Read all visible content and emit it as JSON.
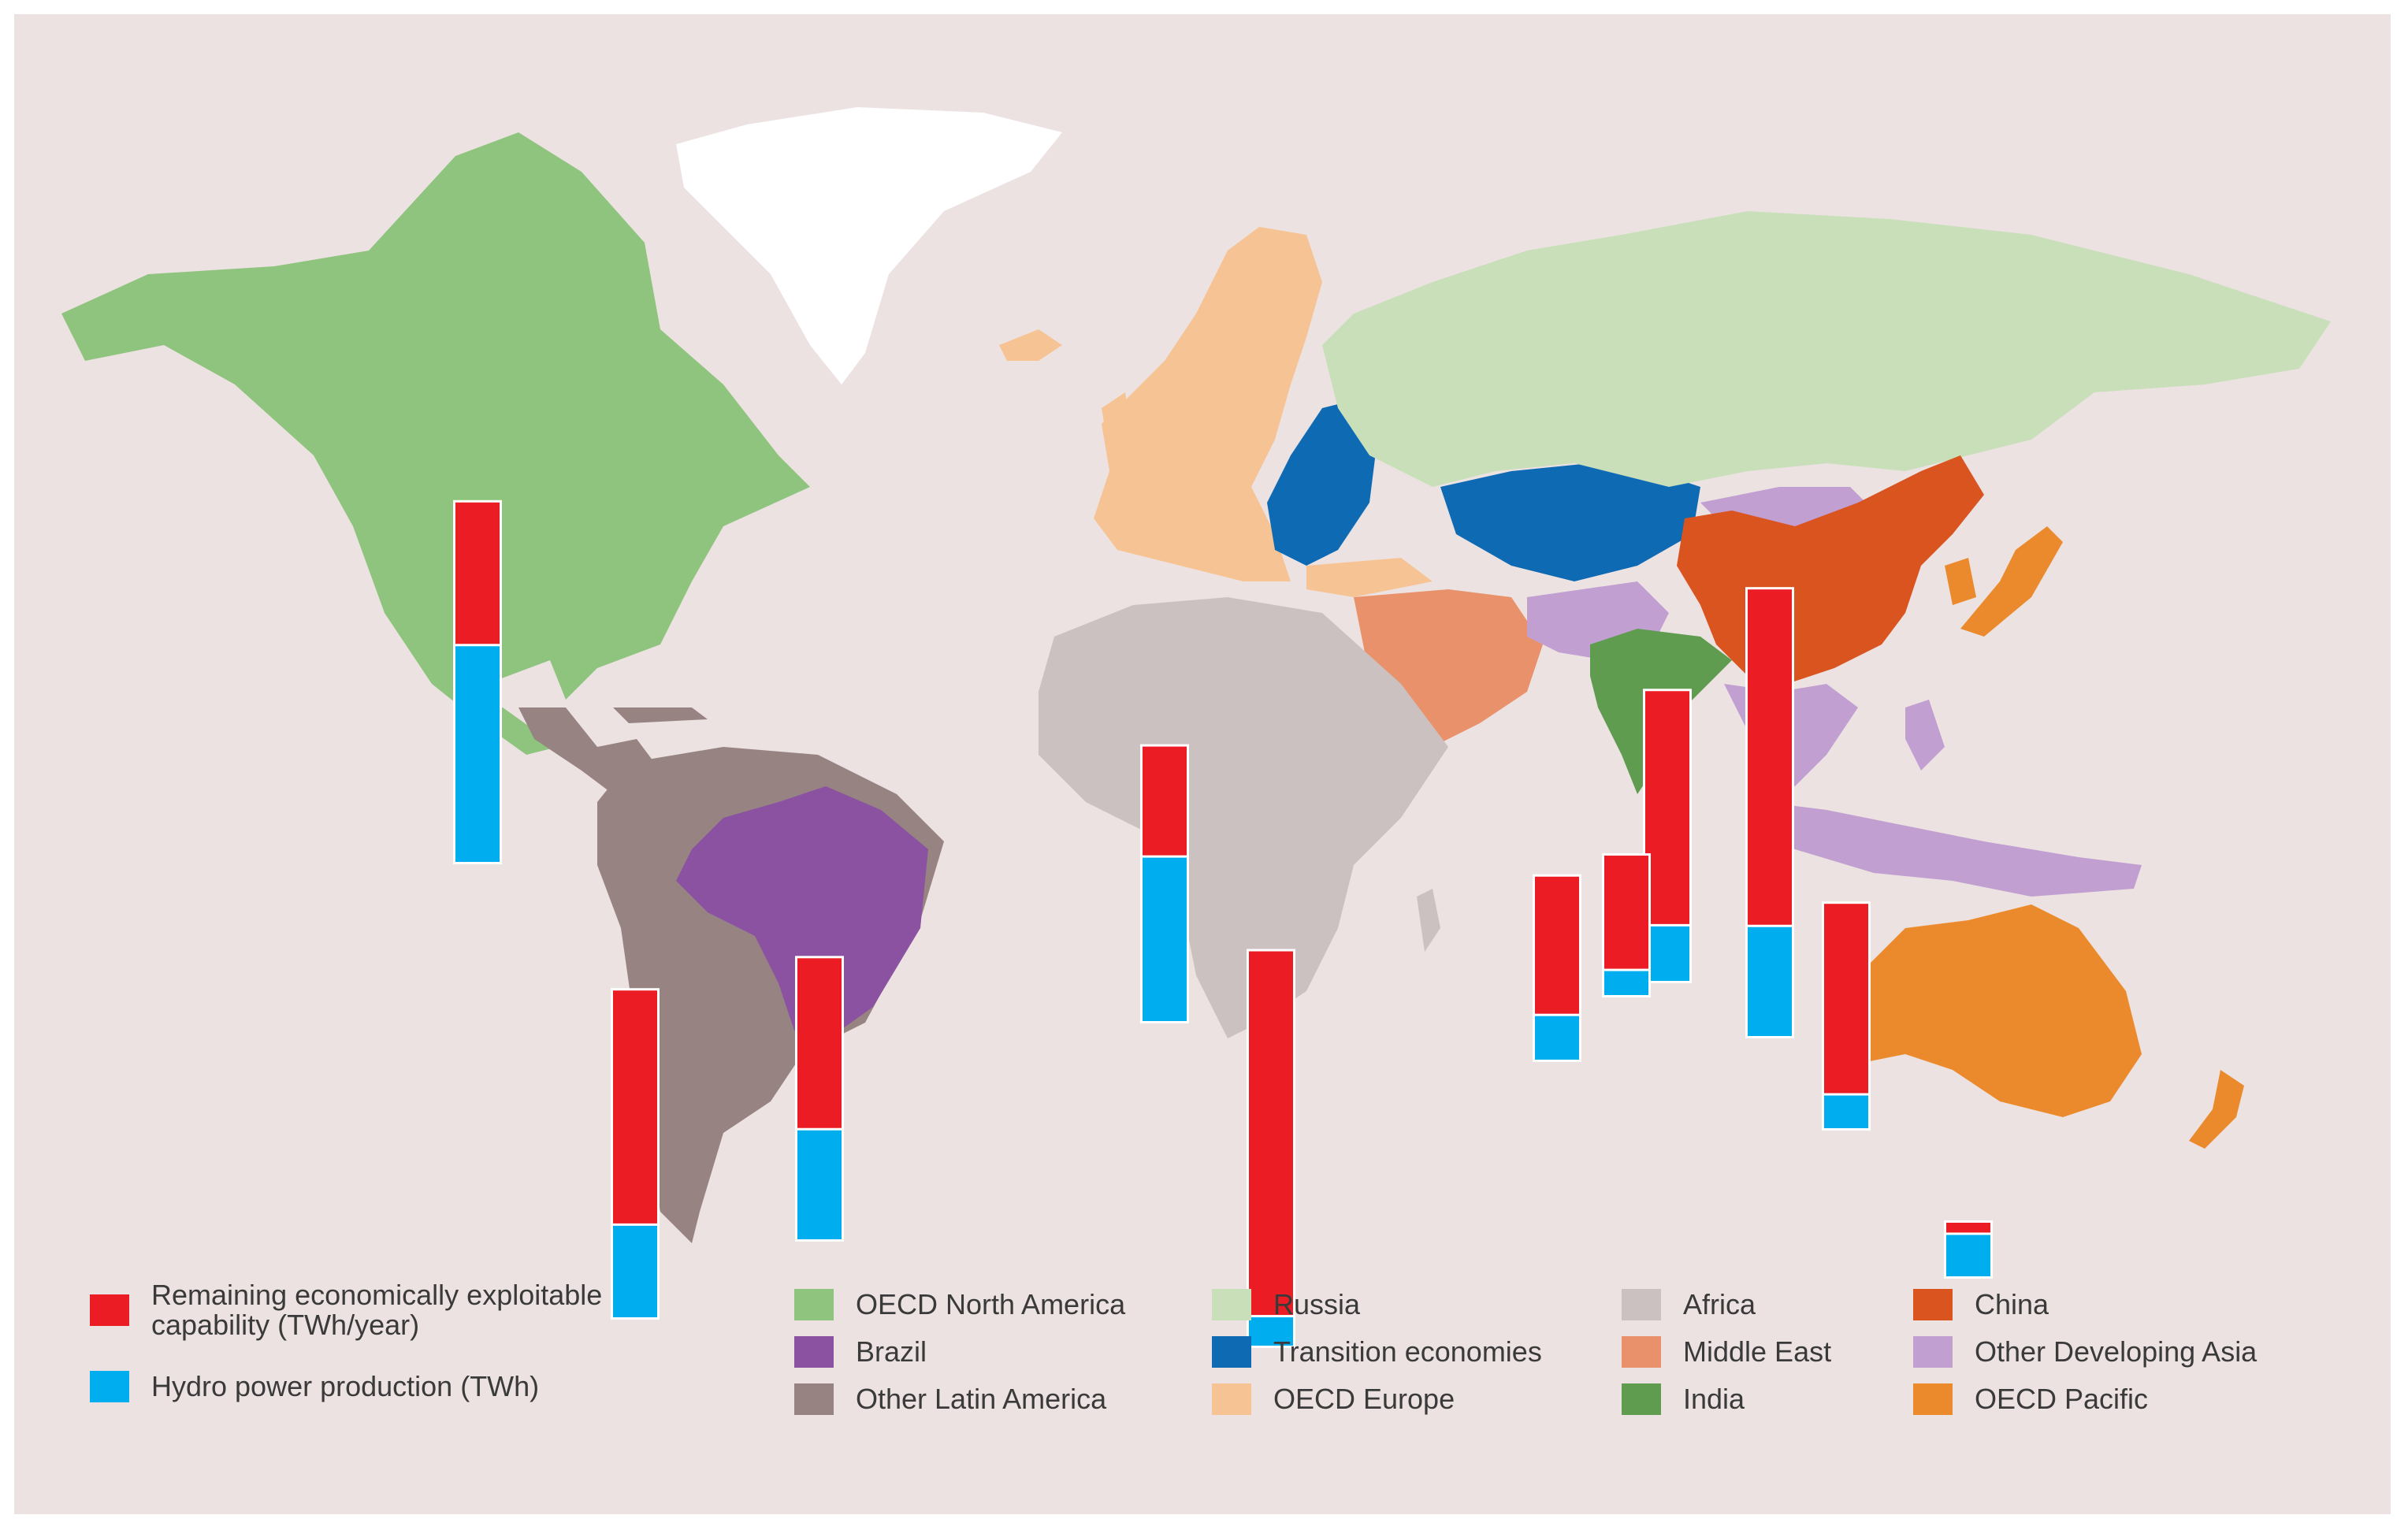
{
  "colors": {
    "background": "#ede2e2",
    "remaining": "#ec1c24",
    "production": "#00aeef",
    "greenland": "#ffffff"
  },
  "regions": [
    {
      "id": "oecd-north-america",
      "label": "OECD North America",
      "color": "#8fc47e"
    },
    {
      "id": "brazil",
      "label": "Brazil",
      "color": "#8b52a1"
    },
    {
      "id": "other-latin-america",
      "label": "Other Latin America",
      "color": "#978482"
    },
    {
      "id": "russia",
      "label": "Russia",
      "color": "#c8dfba"
    },
    {
      "id": "transition-economies",
      "label": "Transition economies",
      "color": "#0f6ab4"
    },
    {
      "id": "oecd-europe",
      "label": "OECD Europe",
      "color": "#f6c494"
    },
    {
      "id": "africa",
      "label": "Africa",
      "color": "#cbc1c0"
    },
    {
      "id": "middle-east",
      "label": "Middle East",
      "color": "#e9916a"
    },
    {
      "id": "india",
      "label": "India",
      "color": "#5f9c4f"
    },
    {
      "id": "china",
      "label": "China",
      "color": "#d9541e"
    },
    {
      "id": "other-developing-asia",
      "label": "Other Developing Asia",
      "color": "#c19fd1"
    },
    {
      "id": "oecd-pacific",
      "label": "OECD Pacific",
      "color": "#eb8a2c"
    }
  ],
  "legend": {
    "remaining_label": "Remaining economically exploitable capability (TWh/year)",
    "production_label": "Hydro power production (TWh)"
  },
  "chart_data": {
    "type": "bar",
    "stacked": true,
    "categories": [
      "OECD North America",
      "OECD Europe",
      "Transition economies",
      "Russia",
      "China",
      "Other Developing Asia",
      "India",
      "Middle East",
      "Africa",
      "Brazil",
      "Other Latin America",
      "OECD Pacific"
    ],
    "series": [
      {
        "name": "Remaining economically exploitable capability (TWh/year)",
        "values": [
          330,
          255,
          320,
          540,
          775,
          440,
          265,
          0,
          840,
          395,
          540,
          28
        ]
      },
      {
        "name": "Hydro power production (TWh)",
        "values": [
          495,
          375,
          100,
          125,
          250,
          75,
          55,
          0,
          65,
          250,
          210,
          95
        ]
      }
    ]
  }
}
